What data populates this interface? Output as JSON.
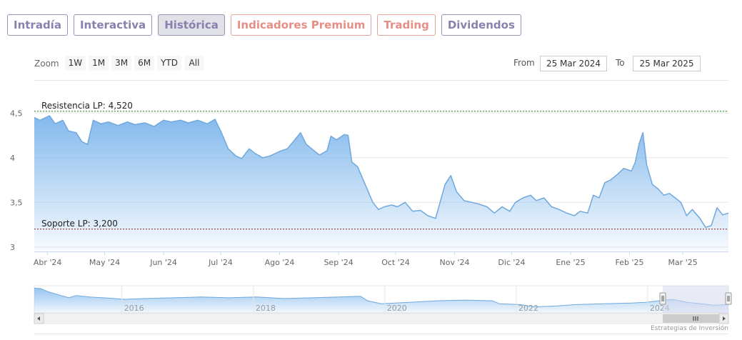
{
  "tabs": [
    {
      "label": "Intradía",
      "active": false,
      "premium": false
    },
    {
      "label": "Interactiva",
      "active": false,
      "premium": false
    },
    {
      "label": "Histórica",
      "active": true,
      "premium": false
    },
    {
      "label": "Indicadores Premium",
      "active": false,
      "premium": true
    },
    {
      "label": "Trading",
      "active": false,
      "premium": true
    },
    {
      "label": "Dividendos",
      "active": false,
      "premium": false
    }
  ],
  "zoom": {
    "label": "Zoom",
    "buttons": [
      "1W",
      "1M",
      "3M",
      "6M",
      "YTD",
      "All"
    ]
  },
  "range": {
    "from_label": "From",
    "from_value": "25 Mar 2024",
    "to_label": "To",
    "to_value": "25 Mar 2025"
  },
  "colors": {
    "series": "#6fa8dc",
    "area_top": "#7cb5ec",
    "resistance": "#1a7a1a",
    "support": "#8b1a1a",
    "navigator_mask": "#d5d9ef"
  },
  "chart_data": {
    "type": "area",
    "x_start": "2024-03-25",
    "x_end": "2025-03-25",
    "ylim": [
      2.95,
      4.55
    ],
    "yticks": [
      3,
      3.5,
      4,
      4.5
    ],
    "ytick_labels": [
      "3",
      "3,5",
      "4",
      "4,5"
    ],
    "xtick_labels": [
      {
        "date": "2024-04-01",
        "label": "Abr '24"
      },
      {
        "date": "2024-05-01",
        "label": "May '24"
      },
      {
        "date": "2024-06-01",
        "label": "Jun '24"
      },
      {
        "date": "2024-07-01",
        "label": "Jul '24"
      },
      {
        "date": "2024-08-01",
        "label": "Ago '24"
      },
      {
        "date": "2024-09-01",
        "label": "Sep '24"
      },
      {
        "date": "2024-10-01",
        "label": "Oct '24"
      },
      {
        "date": "2024-11-01",
        "label": "Nov '24"
      },
      {
        "date": "2024-12-01",
        "label": "Dic '24"
      },
      {
        "date": "2025-01-01",
        "label": "Ene '25"
      },
      {
        "date": "2025-02-01",
        "label": "Feb '25"
      },
      {
        "date": "2025-03-01",
        "label": "Mar '25"
      }
    ],
    "grid": true,
    "plot_lines": [
      {
        "label": "Resistencia LP: 4,520",
        "value": 4.52,
        "color": "#1a7a1a"
      },
      {
        "label": "Soporte LP: 3,200",
        "value": 3.2,
        "color": "#8b1a1a"
      }
    ],
    "series": [
      {
        "points": [
          [
            "2024-03-25",
            4.45
          ],
          [
            "2024-03-28",
            4.42
          ],
          [
            "2024-04-02",
            4.47
          ],
          [
            "2024-04-05",
            4.38
          ],
          [
            "2024-04-09",
            4.42
          ],
          [
            "2024-04-12",
            4.3
          ],
          [
            "2024-04-16",
            4.28
          ],
          [
            "2024-04-19",
            4.18
          ],
          [
            "2024-04-22",
            4.15
          ],
          [
            "2024-04-25",
            4.42
          ],
          [
            "2024-04-29",
            4.38
          ],
          [
            "2024-05-03",
            4.4
          ],
          [
            "2024-05-08",
            4.36
          ],
          [
            "2024-05-13",
            4.4
          ],
          [
            "2024-05-17",
            4.37
          ],
          [
            "2024-05-22",
            4.39
          ],
          [
            "2024-05-27",
            4.35
          ],
          [
            "2024-06-01",
            4.42
          ],
          [
            "2024-06-05",
            4.4
          ],
          [
            "2024-06-10",
            4.42
          ],
          [
            "2024-06-14",
            4.39
          ],
          [
            "2024-06-19",
            4.42
          ],
          [
            "2024-06-24",
            4.38
          ],
          [
            "2024-06-28",
            4.43
          ],
          [
            "2024-07-01",
            4.3
          ],
          [
            "2024-07-05",
            4.1
          ],
          [
            "2024-07-09",
            4.02
          ],
          [
            "2024-07-12",
            3.99
          ],
          [
            "2024-07-16",
            4.1
          ],
          [
            "2024-07-19",
            4.05
          ],
          [
            "2024-07-23",
            4.0
          ],
          [
            "2024-07-27",
            4.02
          ],
          [
            "2024-08-01",
            4.07
          ],
          [
            "2024-08-05",
            4.1
          ],
          [
            "2024-08-09",
            4.2
          ],
          [
            "2024-08-12",
            4.28
          ],
          [
            "2024-08-15",
            4.15
          ],
          [
            "2024-08-19",
            4.08
          ],
          [
            "2024-08-22",
            4.03
          ],
          [
            "2024-08-26",
            4.08
          ],
          [
            "2024-08-28",
            4.24
          ],
          [
            "2024-08-31",
            4.2
          ],
          [
            "2024-09-04",
            4.26
          ],
          [
            "2024-09-06",
            4.25
          ],
          [
            "2024-09-08",
            3.95
          ],
          [
            "2024-09-11",
            3.9
          ],
          [
            "2024-09-15",
            3.7
          ],
          [
            "2024-09-19",
            3.5
          ],
          [
            "2024-09-22",
            3.42
          ],
          [
            "2024-09-25",
            3.45
          ],
          [
            "2024-09-29",
            3.47
          ],
          [
            "2024-10-02",
            3.45
          ],
          [
            "2024-10-06",
            3.5
          ],
          [
            "2024-10-10",
            3.4
          ],
          [
            "2024-10-14",
            3.41
          ],
          [
            "2024-10-18",
            3.35
          ],
          [
            "2024-10-22",
            3.32
          ],
          [
            "2024-10-27",
            3.7
          ],
          [
            "2024-10-30",
            3.8
          ],
          [
            "2024-11-02",
            3.62
          ],
          [
            "2024-11-06",
            3.52
          ],
          [
            "2024-11-10",
            3.5
          ],
          [
            "2024-11-14",
            3.48
          ],
          [
            "2024-11-18",
            3.45
          ],
          [
            "2024-11-22",
            3.38
          ],
          [
            "2024-11-26",
            3.45
          ],
          [
            "2024-11-30",
            3.4
          ],
          [
            "2024-12-03",
            3.5
          ],
          [
            "2024-12-07",
            3.55
          ],
          [
            "2024-12-11",
            3.58
          ],
          [
            "2024-12-14",
            3.52
          ],
          [
            "2024-12-18",
            3.55
          ],
          [
            "2024-12-22",
            3.45
          ],
          [
            "2024-12-26",
            3.42
          ],
          [
            "2024-12-30",
            3.38
          ],
          [
            "2025-01-03",
            3.35
          ],
          [
            "2025-01-06",
            3.4
          ],
          [
            "2025-01-10",
            3.38
          ],
          [
            "2025-01-13",
            3.58
          ],
          [
            "2025-01-16",
            3.55
          ],
          [
            "2025-01-19",
            3.72
          ],
          [
            "2025-01-22",
            3.75
          ],
          [
            "2025-01-26",
            3.82
          ],
          [
            "2025-01-29",
            3.88
          ],
          [
            "2025-02-02",
            3.85
          ],
          [
            "2025-02-04",
            3.95
          ],
          [
            "2025-02-06",
            4.15
          ],
          [
            "2025-02-08",
            4.28
          ],
          [
            "2025-02-10",
            3.92
          ],
          [
            "2025-02-13",
            3.7
          ],
          [
            "2025-02-16",
            3.65
          ],
          [
            "2025-02-19",
            3.58
          ],
          [
            "2025-02-22",
            3.6
          ],
          [
            "2025-02-25",
            3.55
          ],
          [
            "2025-02-28",
            3.5
          ],
          [
            "2025-03-03",
            3.35
          ],
          [
            "2025-03-06",
            3.42
          ],
          [
            "2025-03-10",
            3.32
          ],
          [
            "2025-03-13",
            3.22
          ],
          [
            "2025-03-16",
            3.24
          ],
          [
            "2025-03-19",
            3.44
          ],
          [
            "2025-03-22",
            3.36
          ],
          [
            "2025-03-25",
            3.38
          ]
        ]
      }
    ],
    "navigator": {
      "x_start": "2014-09-01",
      "x_end": "2025-03-25",
      "xtick_labels": [
        "2016",
        "2018",
        "2020",
        "2022",
        "2024"
      ],
      "selected_range": [
        "2024-03-25",
        "2025-03-25"
      ]
    }
  },
  "credit": "Estrategias de Inversión"
}
